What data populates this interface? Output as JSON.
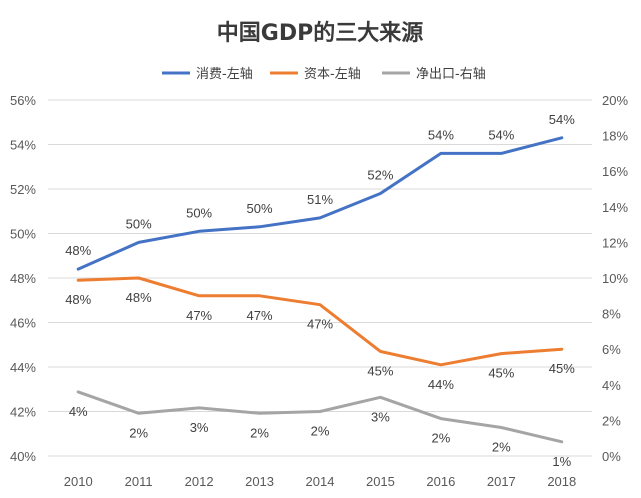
{
  "chart_data": {
    "type": "line",
    "title": "中国GDP的三大来源",
    "categories": [
      "2010",
      "2011",
      "2012",
      "2013",
      "2014",
      "2015",
      "2016",
      "2017",
      "2018"
    ],
    "left_axis": {
      "ylim": [
        40,
        56
      ],
      "ticks": [
        "40%",
        "42%",
        "44%",
        "46%",
        "48%",
        "50%",
        "52%",
        "54%",
        "56%"
      ]
    },
    "right_axis": {
      "ylim": [
        0,
        20
      ],
      "ticks": [
        "0%",
        "2%",
        "4%",
        "6%",
        "8%",
        "10%",
        "12%",
        "14%",
        "16%",
        "18%",
        "20%"
      ]
    },
    "grid": true,
    "legend_position": "top",
    "series": [
      {
        "name": "消费-左轴",
        "axis": "left",
        "color": "#4472c4",
        "values": [
          48.4,
          49.6,
          50.1,
          50.3,
          50.7,
          51.8,
          53.6,
          53.6,
          54.3
        ],
        "labels": [
          "48%",
          "50%",
          "50%",
          "50%",
          "51%",
          "52%",
          "54%",
          "54%",
          "54%"
        ],
        "label_side": [
          "above",
          "above",
          "above",
          "above",
          "above",
          "above",
          "above",
          "above",
          "above"
        ]
      },
      {
        "name": "资本-左轴",
        "axis": "left",
        "color": "#ed7d31",
        "values": [
          47.9,
          48.0,
          47.2,
          47.2,
          46.8,
          44.7,
          44.1,
          44.6,
          44.8
        ],
        "labels": [
          "48%",
          "48%",
          "47%",
          "47%",
          "47%",
          "45%",
          "44%",
          "45%",
          "45%"
        ],
        "label_side": [
          "below",
          "below",
          "below",
          "below",
          "below",
          "below",
          "below",
          "below",
          "below"
        ]
      },
      {
        "name": "净出口-右轴",
        "axis": "right",
        "color": "#a5a5a5",
        "values": [
          3.6,
          2.4,
          2.7,
          2.4,
          2.5,
          3.3,
          2.1,
          1.6,
          0.8
        ],
        "labels": [
          "4%",
          "2%",
          "3%",
          "2%",
          "2%",
          "3%",
          "2%",
          "2%",
          "1%"
        ],
        "label_side": [
          "below",
          "below",
          "below",
          "below",
          "below",
          "below",
          "below",
          "below",
          "below"
        ]
      }
    ]
  }
}
